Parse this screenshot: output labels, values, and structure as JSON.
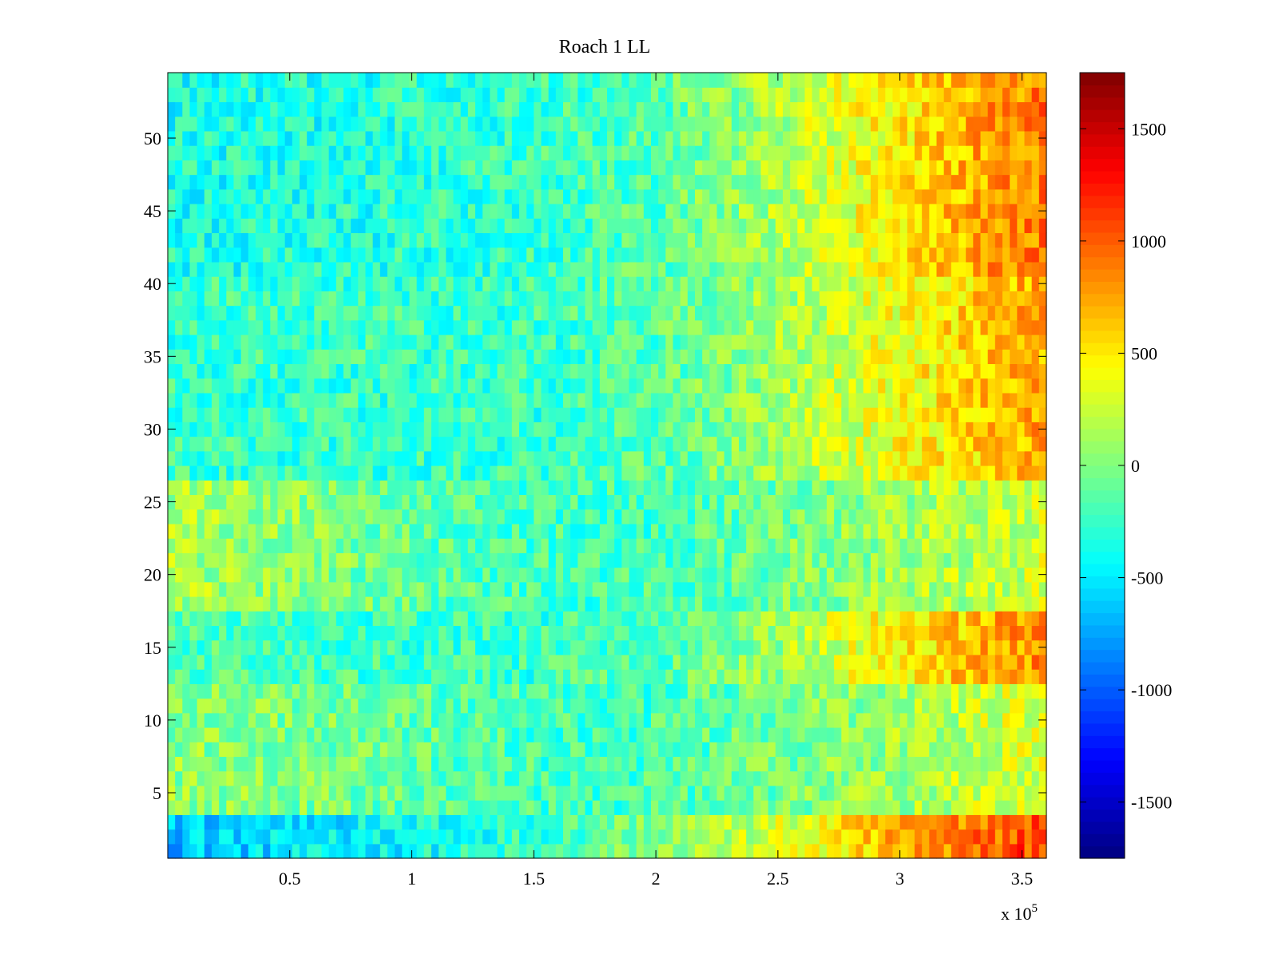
{
  "chart_data": {
    "type": "heatmap",
    "title": "Roach 1 LL",
    "xlabel": "",
    "ylabel": "",
    "x_exponent_label": "x 10",
    "x_exponent_power": "5",
    "xlim": [
      0,
      360000
    ],
    "ylim": [
      0.5,
      54.5
    ],
    "x_ticks": [
      {
        "value": 50000,
        "label": "0.5"
      },
      {
        "value": 100000,
        "label": "1"
      },
      {
        "value": 150000,
        "label": "1.5"
      },
      {
        "value": 200000,
        "label": "2"
      },
      {
        "value": 250000,
        "label": "2.5"
      },
      {
        "value": 300000,
        "label": "3"
      },
      {
        "value": 350000,
        "label": "3.5"
      }
    ],
    "y_ticks": [
      {
        "value": 5,
        "label": "5"
      },
      {
        "value": 10,
        "label": "10"
      },
      {
        "value": 15,
        "label": "15"
      },
      {
        "value": 20,
        "label": "20"
      },
      {
        "value": 25,
        "label": "25"
      },
      {
        "value": 30,
        "label": "30"
      },
      {
        "value": 35,
        "label": "35"
      },
      {
        "value": 40,
        "label": "40"
      },
      {
        "value": 45,
        "label": "45"
      },
      {
        "value": 50,
        "label": "50"
      }
    ],
    "rows": 54,
    "x_bins": 120,
    "colormap": "jet",
    "colorbar": {
      "range": [
        -1750,
        1750
      ],
      "ticks": [
        {
          "value": 1500,
          "label": "1500"
        },
        {
          "value": 1000,
          "label": "1000"
        },
        {
          "value": 500,
          "label": "500"
        },
        {
          "value": 0,
          "label": "0"
        },
        {
          "value": -500,
          "label": "-500"
        },
        {
          "value": -1000,
          "label": "-1000"
        },
        {
          "value": -1500,
          "label": "-1500"
        }
      ]
    },
    "trend_x": [
      0,
      50000,
      100000,
      150000,
      200000,
      250000,
      300000,
      350000,
      360000
    ],
    "row_profiles": [
      {
        "name": "rows-1-3",
        "rows": [
          1,
          3
        ],
        "values": [
          -650,
          -550,
          -400,
          -250,
          50,
          250,
          700,
          1050,
          1150
        ]
      },
      {
        "name": "rows-4-12",
        "rows": [
          4,
          12
        ],
        "values": [
          50,
          0,
          -100,
          -200,
          -200,
          -50,
          100,
          300,
          350
        ]
      },
      {
        "name": "rows-13-17",
        "rows": [
          13,
          17
        ],
        "values": [
          -150,
          -200,
          -250,
          -250,
          -150,
          100,
          450,
          800,
          850
        ]
      },
      {
        "name": "rows-18-26",
        "rows": [
          18,
          26
        ],
        "values": [
          150,
          50,
          -100,
          -200,
          -200,
          -50,
          100,
          250,
          300
        ]
      },
      {
        "name": "rows-27-40",
        "rows": [
          27,
          40
        ],
        "values": [
          -250,
          -250,
          -250,
          -250,
          -150,
          100,
          400,
          700,
          750
        ]
      },
      {
        "name": "rows-41-54",
        "rows": [
          41,
          54
        ],
        "values": [
          -350,
          -350,
          -300,
          -250,
          -150,
          150,
          500,
          850,
          900
        ]
      }
    ],
    "grid": false,
    "legend": "colorbar-right"
  }
}
